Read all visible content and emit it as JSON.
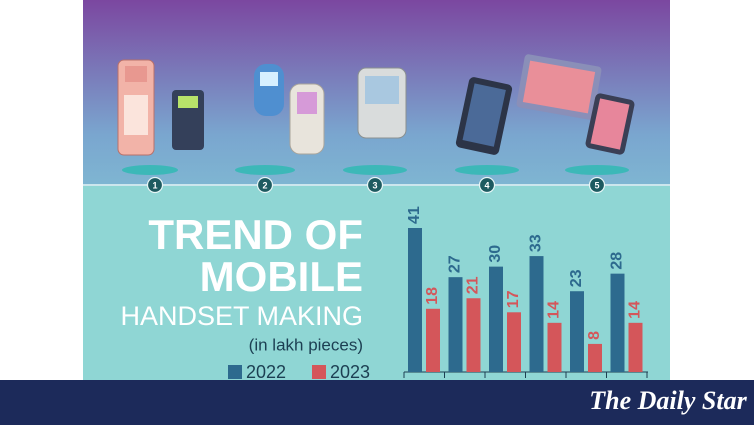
{
  "header": {
    "steps": [
      "1",
      "2",
      "3",
      "4",
      "5"
    ]
  },
  "chart_data": {
    "type": "bar",
    "title_lines": [
      "TREND OF",
      "MOBILE"
    ],
    "subtitle": "HANDSET MAKING",
    "unit": "(in lakh pieces)",
    "series": [
      {
        "name": "2022",
        "color": "#2d6a8e",
        "values": [
          41,
          27,
          30,
          33,
          23,
          28
        ]
      },
      {
        "name": "2023",
        "color": "#d4565a",
        "values": [
          18,
          21,
          17,
          14,
          8,
          14
        ]
      }
    ]
  },
  "footer": {
    "logo": "The Daily Star"
  }
}
